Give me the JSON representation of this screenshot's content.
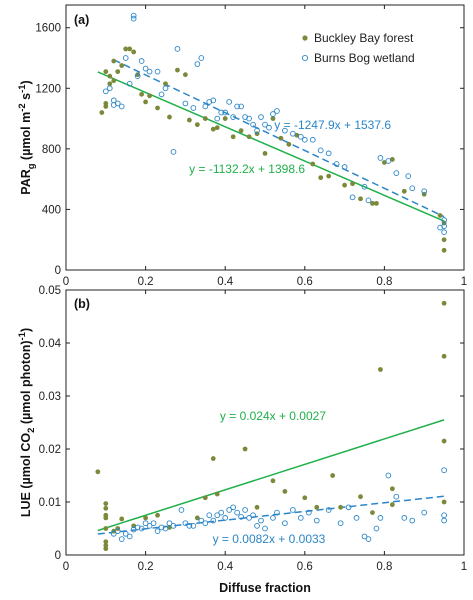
{
  "colors": {
    "forest": "#7a8a3a",
    "wetland": "#2a86c8",
    "forest_line": "#1fb04a",
    "wetland_line": "#2a86c8"
  },
  "shared": {
    "xlabel": "Diffuse fraction",
    "xlim": [
      0,
      1
    ],
    "xticks": [
      "0",
      "0.2",
      "0.4",
      "0.6",
      "0.8",
      "1"
    ]
  },
  "legend": {
    "placement": "top-right",
    "items": [
      "Buckley Bay forest",
      "Burns Bog wetland"
    ]
  },
  "chart_data": [
    {
      "type": "scatter",
      "panel": "(a)",
      "ylabel_main": "PAR",
      "ylabel_sub": "g",
      "ylabel_unit": " (µmol m",
      "ylabel_exp1": "-2",
      "ylabel_mid": " s",
      "ylabel_exp2": "-1",
      "ylabel_end": ")",
      "ylim": [
        0,
        1750
      ],
      "yticks": [
        0,
        400,
        800,
        1200,
        1600
      ],
      "ytick_labels": [
        "0",
        "400",
        "800",
        "1200",
        "1600"
      ],
      "series": [
        {
          "name": "Buckley Bay forest",
          "marker": "filled",
          "points": [
            [
              0.09,
              1040
            ],
            [
              0.1,
              1080
            ],
            [
              0.1,
              1100
            ],
            [
              0.1,
              1310
            ],
            [
              0.11,
              1280
            ],
            [
              0.11,
              1230
            ],
            [
              0.12,
              1250
            ],
            [
              0.12,
              1380
            ],
            [
              0.13,
              1310
            ],
            [
              0.14,
              1350
            ],
            [
              0.15,
              1460
            ],
            [
              0.16,
              1460
            ],
            [
              0.17,
              1440
            ],
            [
              0.18,
              1290
            ],
            [
              0.19,
              1160
            ],
            [
              0.2,
              1110
            ],
            [
              0.21,
              1150
            ],
            [
              0.23,
              1070
            ],
            [
              0.25,
              1230
            ],
            [
              0.26,
              1010
            ],
            [
              0.28,
              1320
            ],
            [
              0.3,
              1290
            ],
            [
              0.31,
              990
            ],
            [
              0.33,
              960
            ],
            [
              0.35,
              1000
            ],
            [
              0.37,
              930
            ],
            [
              0.38,
              940
            ],
            [
              0.4,
              1000
            ],
            [
              0.42,
              880
            ],
            [
              0.44,
              920
            ],
            [
              0.46,
              880
            ],
            [
              0.48,
              900
            ],
            [
              0.5,
              770
            ],
            [
              0.52,
              1000
            ],
            [
              0.54,
              870
            ],
            [
              0.56,
              830
            ],
            [
              0.58,
              890
            ],
            [
              0.62,
              700
            ],
            [
              0.64,
              610
            ],
            [
              0.66,
              620
            ],
            [
              0.7,
              560
            ],
            [
              0.72,
              570
            ],
            [
              0.74,
              470
            ],
            [
              0.77,
              440
            ],
            [
              0.78,
              440
            ],
            [
              0.8,
              710
            ],
            [
              0.82,
              730
            ],
            [
              0.85,
              520
            ],
            [
              0.9,
              500
            ],
            [
              0.94,
              360
            ],
            [
              0.95,
              310
            ],
            [
              0.95,
              130
            ],
            [
              0.95,
              200
            ]
          ]
        },
        {
          "name": "Burns Bog wetland",
          "marker": "open",
          "points": [
            [
              0.1,
              1180
            ],
            [
              0.11,
              1200
            ],
            [
              0.12,
              1120
            ],
            [
              0.12,
              1090
            ],
            [
              0.13,
              1100
            ],
            [
              0.14,
              1080
            ],
            [
              0.15,
              1400
            ],
            [
              0.16,
              1230
            ],
            [
              0.17,
              1660
            ],
            [
              0.17,
              1680
            ],
            [
              0.18,
              1280
            ],
            [
              0.19,
              1380
            ],
            [
              0.2,
              1330
            ],
            [
              0.21,
              1310
            ],
            [
              0.23,
              1310
            ],
            [
              0.24,
              1160
            ],
            [
              0.25,
              1200
            ],
            [
              0.27,
              780
            ],
            [
              0.28,
              1460
            ],
            [
              0.3,
              1100
            ],
            [
              0.32,
              1070
            ],
            [
              0.33,
              1360
            ],
            [
              0.34,
              1400
            ],
            [
              0.35,
              1080
            ],
            [
              0.36,
              1110
            ],
            [
              0.37,
              1120
            ],
            [
              0.38,
              1000
            ],
            [
              0.39,
              1040
            ],
            [
              0.4,
              1040
            ],
            [
              0.41,
              1110
            ],
            [
              0.42,
              1010
            ],
            [
              0.43,
              1080
            ],
            [
              0.44,
              1080
            ],
            [
              0.45,
              1010
            ],
            [
              0.46,
              1000
            ],
            [
              0.47,
              960
            ],
            [
              0.48,
              920
            ],
            [
              0.49,
              1010
            ],
            [
              0.5,
              960
            ],
            [
              0.51,
              940
            ],
            [
              0.52,
              1030
            ],
            [
              0.53,
              1050
            ],
            [
              0.55,
              920
            ],
            [
              0.57,
              900
            ],
            [
              0.59,
              880
            ],
            [
              0.6,
              860
            ],
            [
              0.62,
              860
            ],
            [
              0.64,
              790
            ],
            [
              0.66,
              770
            ],
            [
              0.68,
              700
            ],
            [
              0.7,
              680
            ],
            [
              0.72,
              480
            ],
            [
              0.75,
              550
            ],
            [
              0.76,
              460
            ],
            [
              0.79,
              740
            ],
            [
              0.81,
              720
            ],
            [
              0.83,
              640
            ],
            [
              0.86,
              620
            ],
            [
              0.87,
              540
            ],
            [
              0.9,
              520
            ],
            [
              0.94,
              280
            ],
            [
              0.95,
              250
            ],
            [
              0.95,
              290
            ],
            [
              0.95,
              330
            ]
          ]
        }
      ],
      "fits": [
        {
          "series": "Buckley Bay forest",
          "slope": -1132.2,
          "intercept": 1398.6,
          "x_range": [
            0.08,
            0.95
          ],
          "style": "solid",
          "label": "y = -1132.2x + 1398.6",
          "label_x": 0.455,
          "label_y": 640
        },
        {
          "series": "Burns Bog wetland",
          "slope": -1247.9,
          "intercept": 1537.6,
          "x_range": [
            0.12,
            0.95
          ],
          "style": "dashed",
          "label": "y = -1247.9x + 1537.6",
          "label_x": 0.67,
          "label_y": 930
        }
      ]
    },
    {
      "type": "scatter",
      "panel": "(b)",
      "ylabel_main": "LUE (µmol CO",
      "ylabel_sub": "2",
      "ylabel_end": " (µmol photon)",
      "ylabel_exp": "-1",
      "ylabel_close": ")",
      "ylim": [
        0,
        0.05
      ],
      "yticks": [
        0,
        0.01,
        0.02,
        0.03,
        0.04,
        0.05
      ],
      "ytick_labels": [
        "0",
        "0.01",
        "0.02",
        "0.03",
        "0.04",
        "0.05"
      ],
      "series": [
        {
          "name": "Buckley Bay forest",
          "marker": "filled",
          "points": [
            [
              0.08,
              0.0157
            ],
            [
              0.1,
              0.0097
            ],
            [
              0.1,
              0.0088
            ],
            [
              0.1,
              0.0075
            ],
            [
              0.1,
              0.007
            ],
            [
              0.1,
              0.005
            ],
            [
              0.1,
              0.0025
            ],
            [
              0.1,
              0.0018
            ],
            [
              0.1,
              0.0012
            ],
            [
              0.12,
              0.0045
            ],
            [
              0.13,
              0.005
            ],
            [
              0.14,
              0.0068
            ],
            [
              0.17,
              0.0055
            ],
            [
              0.2,
              0.007
            ],
            [
              0.23,
              0.0075
            ],
            [
              0.26,
              0.0052
            ],
            [
              0.33,
              0.007
            ],
            [
              0.35,
              0.0108
            ],
            [
              0.37,
              0.0182
            ],
            [
              0.38,
              0.0115
            ],
            [
              0.45,
              0.02
            ],
            [
              0.48,
              0.009
            ],
            [
              0.52,
              0.014
            ],
            [
              0.55,
              0.012
            ],
            [
              0.6,
              0.0108
            ],
            [
              0.63,
              0.009
            ],
            [
              0.67,
              0.015
            ],
            [
              0.69,
              0.009
            ],
            [
              0.74,
              0.011
            ],
            [
              0.77,
              0.008
            ],
            [
              0.79,
              0.035
            ],
            [
              0.82,
              0.0125
            ],
            [
              0.82,
              0.0095
            ],
            [
              0.95,
              0.0475
            ],
            [
              0.95,
              0.0375
            ],
            [
              0.95,
              0.0215
            ],
            [
              0.95,
              0.01
            ]
          ]
        },
        {
          "name": "Burns Bog wetland",
          "marker": "open",
          "points": [
            [
              0.12,
              0.004
            ],
            [
              0.13,
              0.0045
            ],
            [
              0.14,
              0.003
            ],
            [
              0.15,
              0.004
            ],
            [
              0.16,
              0.0035
            ],
            [
              0.17,
              0.0048
            ],
            [
              0.18,
              0.0052
            ],
            [
              0.19,
              0.005
            ],
            [
              0.2,
              0.006
            ],
            [
              0.21,
              0.0055
            ],
            [
              0.22,
              0.006
            ],
            [
              0.23,
              0.0045
            ],
            [
              0.24,
              0.0052
            ],
            [
              0.25,
              0.005
            ],
            [
              0.26,
              0.006
            ],
            [
              0.27,
              0.0055
            ],
            [
              0.29,
              0.0085
            ],
            [
              0.3,
              0.006
            ],
            [
              0.31,
              0.0055
            ],
            [
              0.32,
              0.0055
            ],
            [
              0.34,
              0.0065
            ],
            [
              0.35,
              0.006
            ],
            [
              0.36,
              0.0075
            ],
            [
              0.37,
              0.0065
            ],
            [
              0.38,
              0.0075
            ],
            [
              0.39,
              0.008
            ],
            [
              0.4,
              0.007
            ],
            [
              0.41,
              0.0085
            ],
            [
              0.42,
              0.009
            ],
            [
              0.43,
              0.008
            ],
            [
              0.44,
              0.0072
            ],
            [
              0.45,
              0.0085
            ],
            [
              0.46,
              0.007
            ],
            [
              0.47,
              0.0075
            ],
            [
              0.48,
              0.0055
            ],
            [
              0.49,
              0.0065
            ],
            [
              0.5,
              0.005
            ],
            [
              0.52,
              0.007
            ],
            [
              0.53,
              0.008
            ],
            [
              0.55,
              0.006
            ],
            [
              0.57,
              0.0085
            ],
            [
              0.59,
              0.007
            ],
            [
              0.61,
              0.008
            ],
            [
              0.63,
              0.0065
            ],
            [
              0.66,
              0.0085
            ],
            [
              0.69,
              0.006
            ],
            [
              0.71,
              0.009
            ],
            [
              0.73,
              0.007
            ],
            [
              0.75,
              0.0035
            ],
            [
              0.76,
              0.003
            ],
            [
              0.78,
              0.005
            ],
            [
              0.79,
              0.007
            ],
            [
              0.81,
              0.015
            ],
            [
              0.83,
              0.011
            ],
            [
              0.85,
              0.007
            ],
            [
              0.87,
              0.0065
            ],
            [
              0.9,
              0.008
            ],
            [
              0.95,
              0.016
            ],
            [
              0.95,
              0.0075
            ],
            [
              0.95,
              0.0065
            ]
          ]
        }
      ],
      "fits": [
        {
          "series": "Buckley Bay forest",
          "slope": 0.024,
          "intercept": 0.0027,
          "x_range": [
            0.08,
            0.95
          ],
          "style": "solid",
          "label": "y = 0.024x + 0.0027",
          "label_x": 0.52,
          "label_y": 0.0255
        },
        {
          "series": "Burns Bog wetland",
          "slope": 0.0082,
          "intercept": 0.0033,
          "x_range": [
            0.08,
            0.95
          ],
          "style": "dashed",
          "label": "y = 0.0082x + 0.0033",
          "label_x": 0.51,
          "label_y": 0.0023
        }
      ]
    }
  ]
}
